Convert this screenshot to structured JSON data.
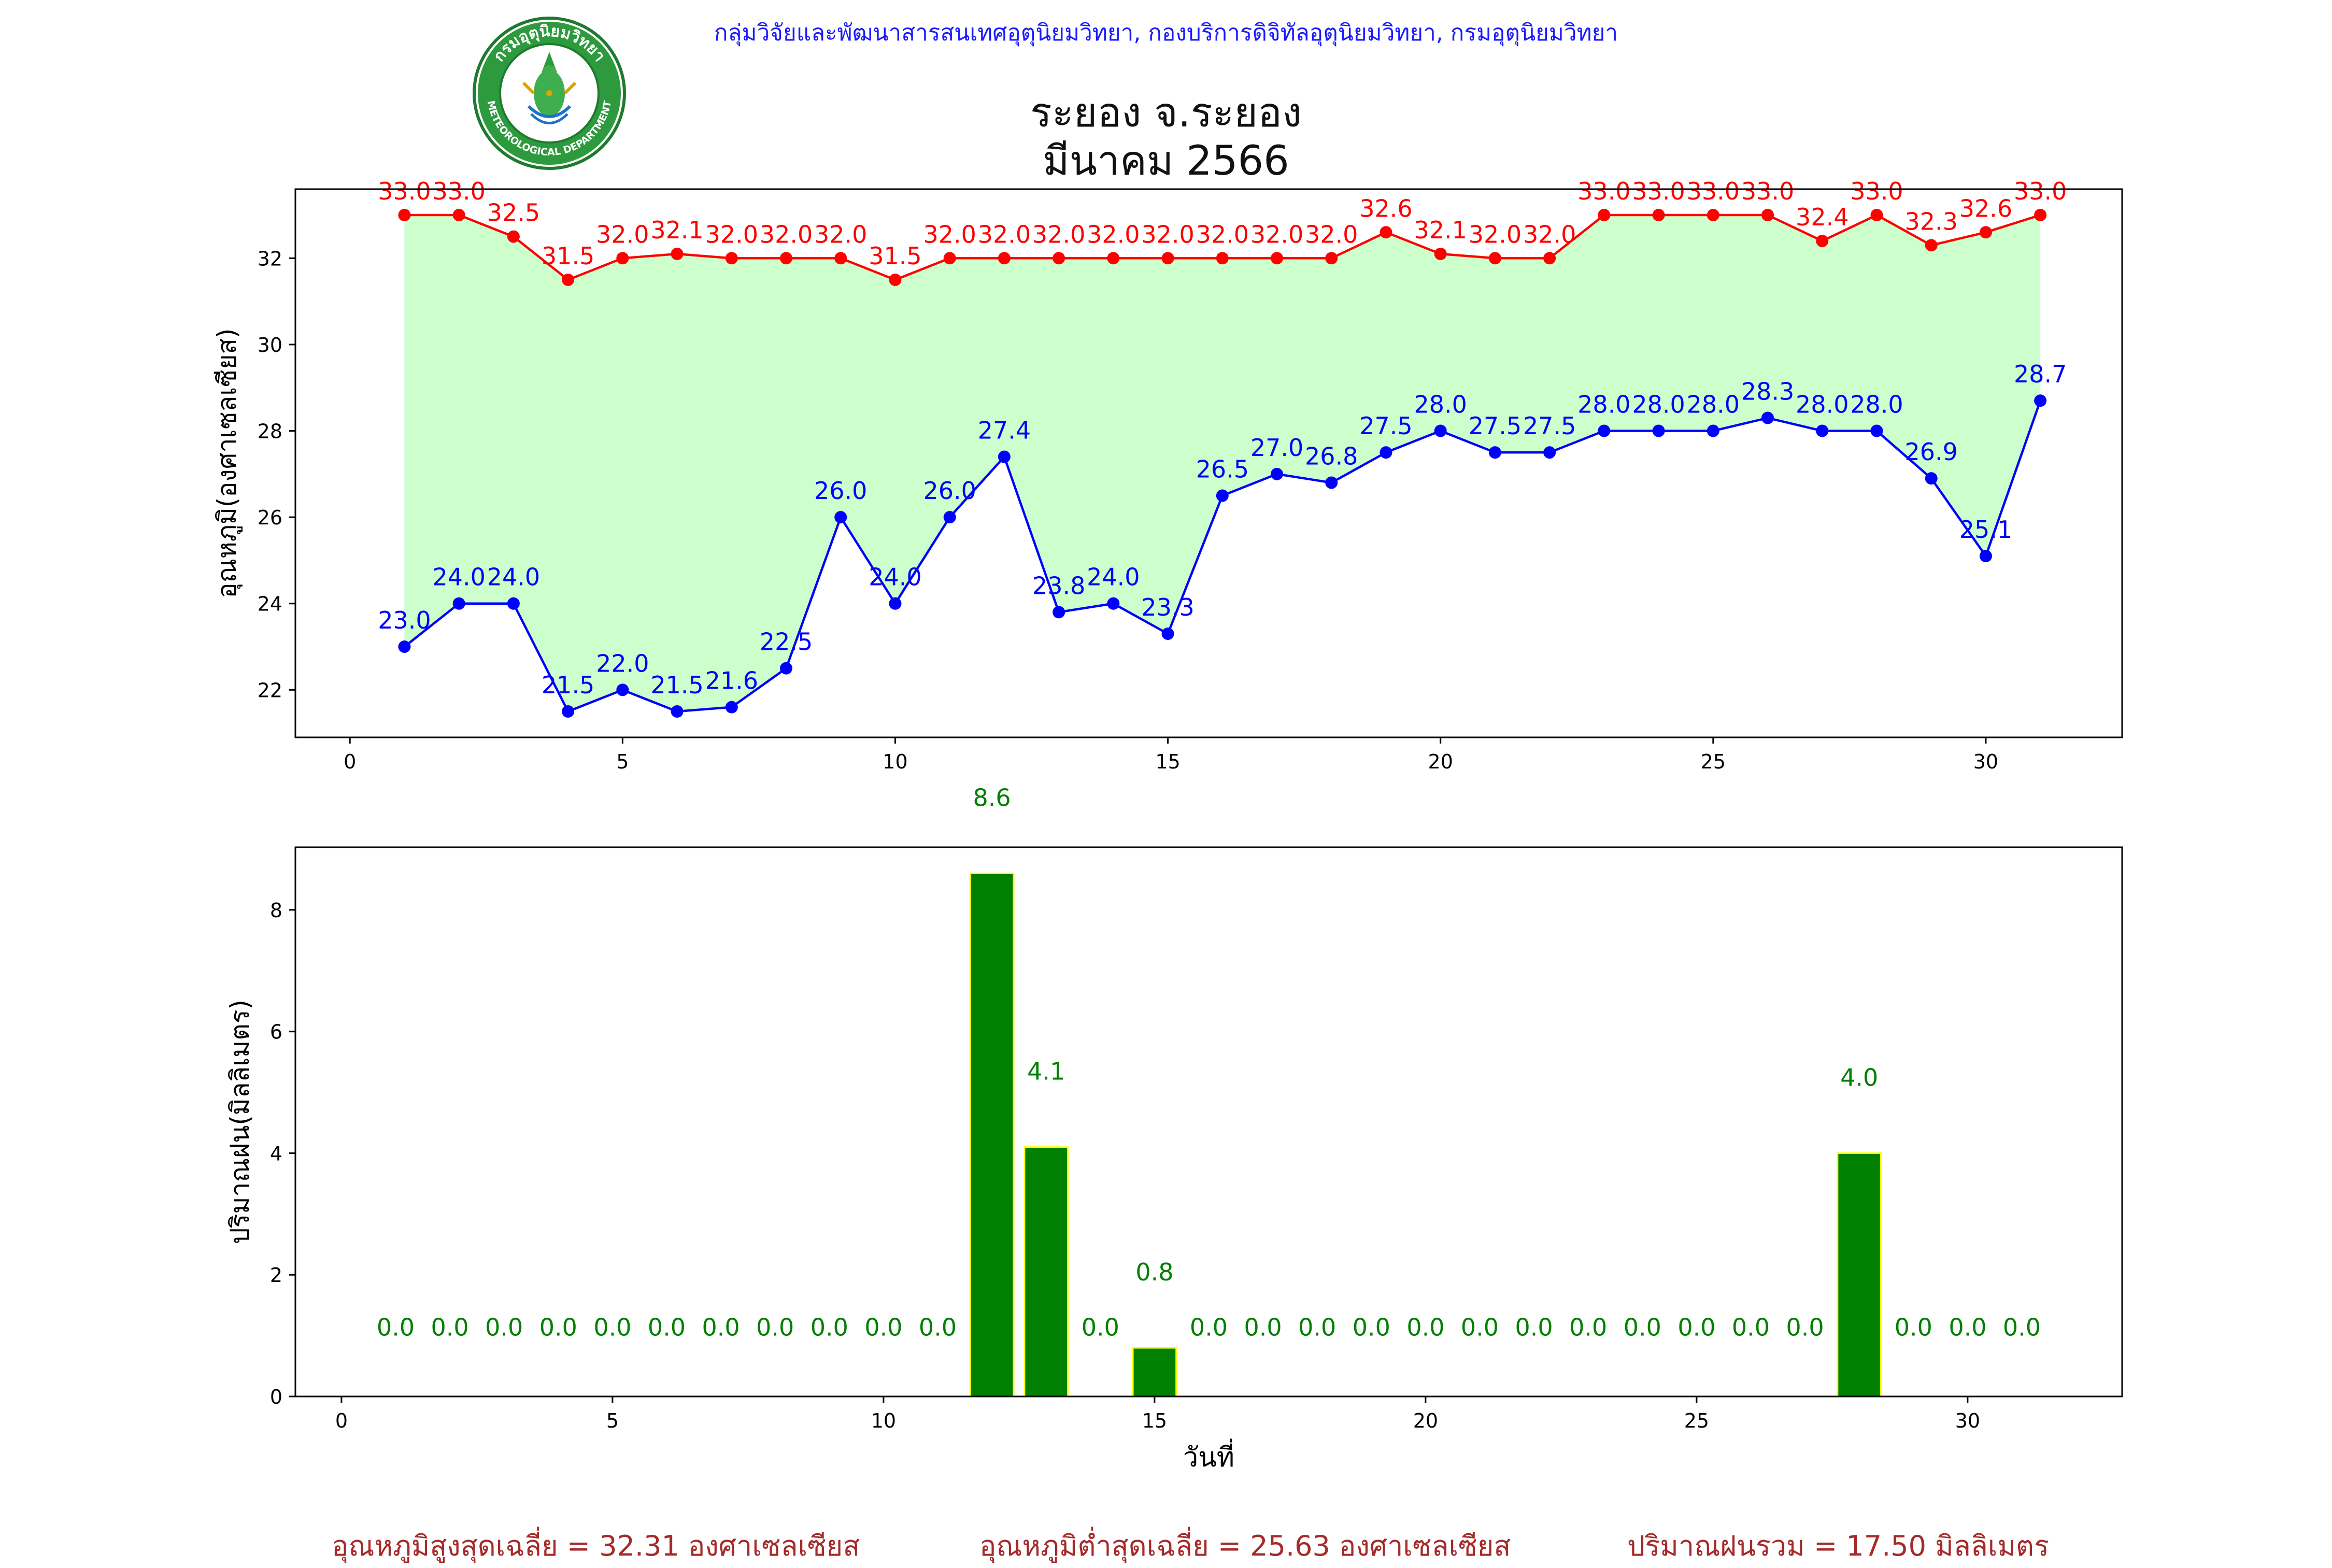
{
  "header": {
    "agency_line": "กลุ่มวิจัยและพัฒนาสารสนเทศอุตุนิยมวิทยา, กองบริการดิจิทัลอุตุนิยมวิทยา, กรมอุตุนิยมวิทยา",
    "logo_top_text": "กรมอุตุนิยมวิทยา",
    "logo_bottom_text": "METEOROLOGICAL DEPARTMENT"
  },
  "title": {
    "line1": "ระยอง จ.ระยอง",
    "line2": "มีนาคม 2566"
  },
  "colors": {
    "max_temp": "#ff0000",
    "min_temp": "#0000ff",
    "fill": "#ccffcc",
    "rain_bar": "#008000",
    "rain_edge": "#ffff00",
    "rain_label": "#008000",
    "summary": "#a52a2a"
  },
  "chart_data": [
    {
      "type": "line",
      "ylabel": "อุณหภูมิ(องศาเซลเซียส)",
      "xlabel": "",
      "x": [
        1,
        2,
        3,
        4,
        5,
        6,
        7,
        8,
        9,
        10,
        11,
        12,
        13,
        14,
        15,
        16,
        17,
        18,
        19,
        20,
        21,
        22,
        23,
        24,
        25,
        26,
        27,
        28,
        29,
        30,
        31
      ],
      "series": [
        {
          "values": [
            33.0,
            33.0,
            32.5,
            31.5,
            32.0,
            32.1,
            32.0,
            32.0,
            32.0,
            31.5,
            32.0,
            32.0,
            32.0,
            32.0,
            32.0,
            32.0,
            32.0,
            32.0,
            32.6,
            32.1,
            32.0,
            32.0,
            33.0,
            33.0,
            33.0,
            33.0,
            32.4,
            33.0,
            32.3,
            32.6,
            33.0
          ]
        },
        {
          "values": [
            23.0,
            24.0,
            24.0,
            21.5,
            22.0,
            21.5,
            21.6,
            22.5,
            26.0,
            24.0,
            26.0,
            27.4,
            23.8,
            24.0,
            23.3,
            26.5,
            27.0,
            26.8,
            27.5,
            28.0,
            27.5,
            27.5,
            28.0,
            28.0,
            28.0,
            28.3,
            28.0,
            28.0,
            26.9,
            25.1,
            28.7
          ]
        }
      ],
      "fill_between": true,
      "xlim": [
        -1,
        32.5
      ],
      "ylim": [
        20.9,
        33.6
      ],
      "xticks": [
        0,
        5,
        10,
        15,
        20,
        25,
        30
      ],
      "yticks": [
        22,
        24,
        26,
        28,
        30,
        32
      ],
      "grid": false
    },
    {
      "type": "bar",
      "xlabel": "วันที่",
      "ylabel": "ปริมาณฝน(มิลลิเมตร)",
      "x": [
        1,
        2,
        3,
        4,
        5,
        6,
        7,
        8,
        9,
        10,
        11,
        12,
        13,
        14,
        15,
        16,
        17,
        18,
        19,
        20,
        21,
        22,
        23,
        24,
        25,
        26,
        27,
        28,
        29,
        30,
        31
      ],
      "values": [
        0.0,
        0.0,
        0.0,
        0.0,
        0.0,
        0.0,
        0.0,
        0.0,
        0.0,
        0.0,
        0.0,
        8.6,
        4.1,
        0.0,
        0.8,
        0.0,
        0.0,
        0.0,
        0.0,
        0.0,
        0.0,
        0.0,
        0.0,
        0.0,
        0.0,
        0.0,
        0.0,
        4.0,
        0.0,
        0.0,
        0.0
      ],
      "xlim": [
        -0.85,
        32.85
      ],
      "ylim": [
        0,
        9.03
      ],
      "xticks": [
        0,
        5,
        10,
        15,
        20,
        25,
        30
      ],
      "yticks": [
        0,
        2,
        4,
        6,
        8
      ],
      "grid": false
    }
  ],
  "summary": {
    "avg_max": "อุณหภูมิสูงสุดเฉลี่ย = 32.31 องศาเซลเซียส",
    "avg_min": "อุณหภูมิต่ำสุดเฉลี่ย = 25.63 องศาเซลเซียส",
    "total_rain": "ปริมาณฝนรวม = 17.50 มิลลิเมตร"
  }
}
